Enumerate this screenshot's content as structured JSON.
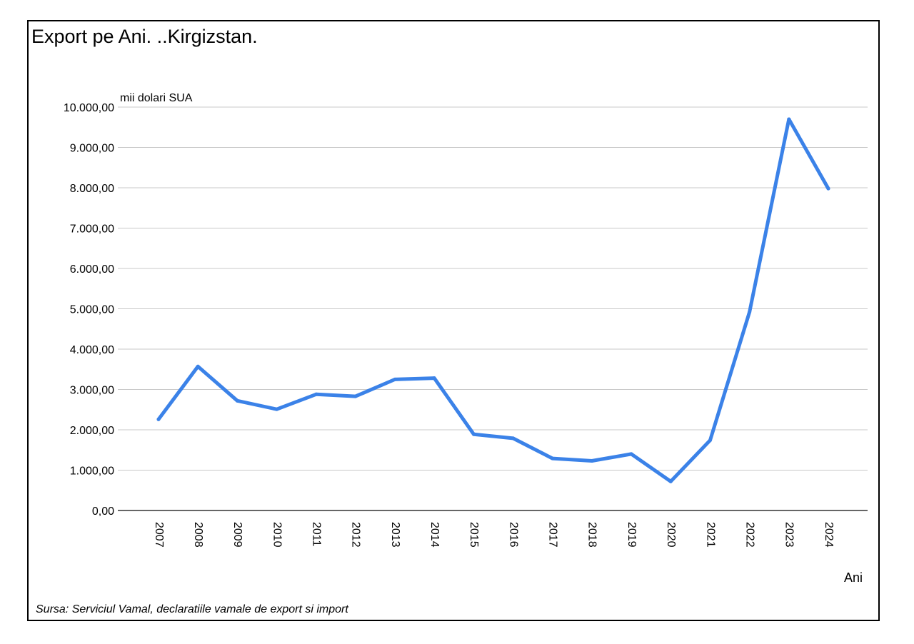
{
  "chart_data": {
    "type": "line",
    "title": "Export pe Ani. ..Kirgizstan.",
    "ylabel": "mii dolari SUA",
    "xlabel": "Ani",
    "source": "Sursa: Serviciul Vamal, declaratiile vamale de export si import",
    "categories": [
      "2007",
      "2008",
      "2009",
      "2010",
      "2011",
      "2012",
      "2013",
      "2014",
      "2015",
      "2016",
      "2017",
      "2018",
      "2019",
      "2020",
      "2021",
      "2022",
      "2023",
      "2024"
    ],
    "series": [
      {
        "name": "Export",
        "color": "#3b82e8",
        "values": [
          2260,
          3570,
          2720,
          2510,
          2880,
          2830,
          3250,
          3280,
          1890,
          1790,
          1290,
          1230,
          1400,
          720,
          1740,
          4920,
          9700,
          7980
        ]
      }
    ],
    "ylim": [
      0,
      10000
    ],
    "yticks": [
      0,
      1000,
      2000,
      3000,
      4000,
      5000,
      6000,
      7000,
      8000,
      9000,
      10000
    ],
    "ytick_labels": [
      "0,00",
      "1.000,00",
      "2.000,00",
      "3.000,00",
      "4.000,00",
      "5.000,00",
      "6.000,00",
      "7.000,00",
      "8.000,00",
      "9.000,00",
      "10.000,00"
    ],
    "grid": true
  }
}
